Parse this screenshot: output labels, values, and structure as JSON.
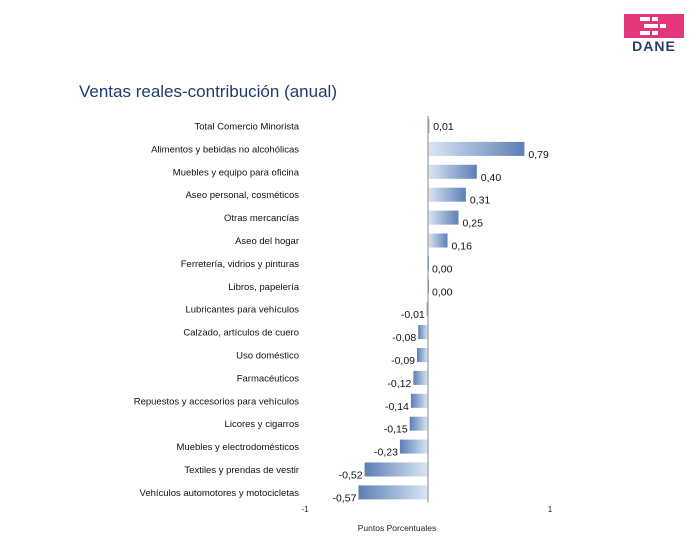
{
  "header": {
    "logo_text": "DANE",
    "title": "Ventas reales-contribución (anual)"
  },
  "colors": {
    "bar_dark": "#5b7fb5",
    "bar_light": "#dbe6f5",
    "logo_pink": "#e4367a",
    "axis": "#8a8a8a"
  },
  "chart_data": {
    "type": "bar",
    "orientation": "horizontal",
    "categories": [
      "Total Comercio Minorista",
      "Alimentos y bebidas no alcohólicas",
      "Muebles y equipo para oficina",
      "Aseo personal, cosméticos",
      "Otras mercancías",
      "Aseo del hogar",
      "Ferretería, vidrios y pinturas",
      "Libros, papelería",
      "Lubricantes para vehículos",
      "Calzado, artículos de cuero",
      "Uso doméstico",
      "Farmacéuticos",
      "Repuestos y accesorios para vehículos",
      "Licores y cigarros",
      "Muebles y electrodomésticos",
      "Textiles y prendas de vestir",
      "Vehículos automotores y motocicletas"
    ],
    "values": [
      0.01,
      0.79,
      0.4,
      0.31,
      0.25,
      0.16,
      0.0,
      0.0,
      -0.01,
      -0.08,
      -0.09,
      -0.12,
      -0.14,
      -0.15,
      -0.23,
      -0.52,
      -0.57
    ],
    "value_labels": [
      "0,01",
      "0,79",
      "0,40",
      "0,31",
      "0,25",
      "0,16",
      "0,00",
      "0,00",
      "-0,01",
      "-0,08",
      "-0,09",
      "-0,12",
      "-0,14",
      "-0,15",
      "-0,23",
      "-0,52",
      "-0,57"
    ],
    "xlim": [
      -1,
      1
    ],
    "x_ticks": [
      -1,
      1
    ],
    "x_tick_labels": [
      "-1",
      "1"
    ],
    "xlabel": "Puntos Porcentuales",
    "ylabel": "",
    "grid": false,
    "legend": "none"
  }
}
